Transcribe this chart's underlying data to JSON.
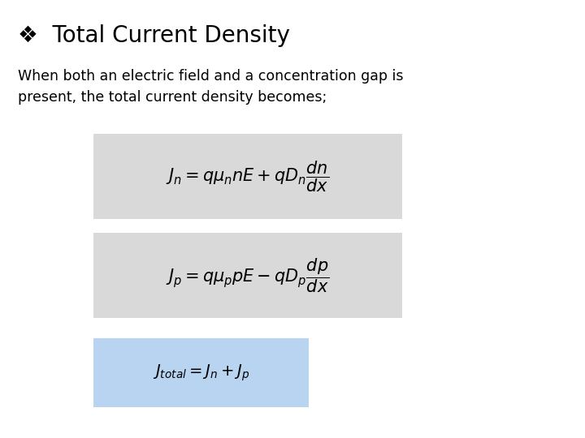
{
  "title": "Total Current Density",
  "title_bullet": "❖",
  "body_text": "When both an electric field and a concentration gap is\npresent, the total current density becomes;",
  "eq1": "$J_n = q\\mu_n nE + qD_n \\dfrac{dn}{dx}$",
  "eq2": "$J_p = q\\mu_p pE - qD_p \\dfrac{dp}{dx}$",
  "eq3": "$J_{total} = J_n + J_p$",
  "bg_color": "#ffffff",
  "title_color": "#000000",
  "body_color": "#000000",
  "eq_box1_color": "#d9d9d9",
  "eq_box2_color": "#d9d9d9",
  "eq_box3_color": "#b8d4f0",
  "title_fontsize": 20,
  "body_fontsize": 12.5,
  "eq_fontsize": 15,
  "eq3_fontsize": 14
}
